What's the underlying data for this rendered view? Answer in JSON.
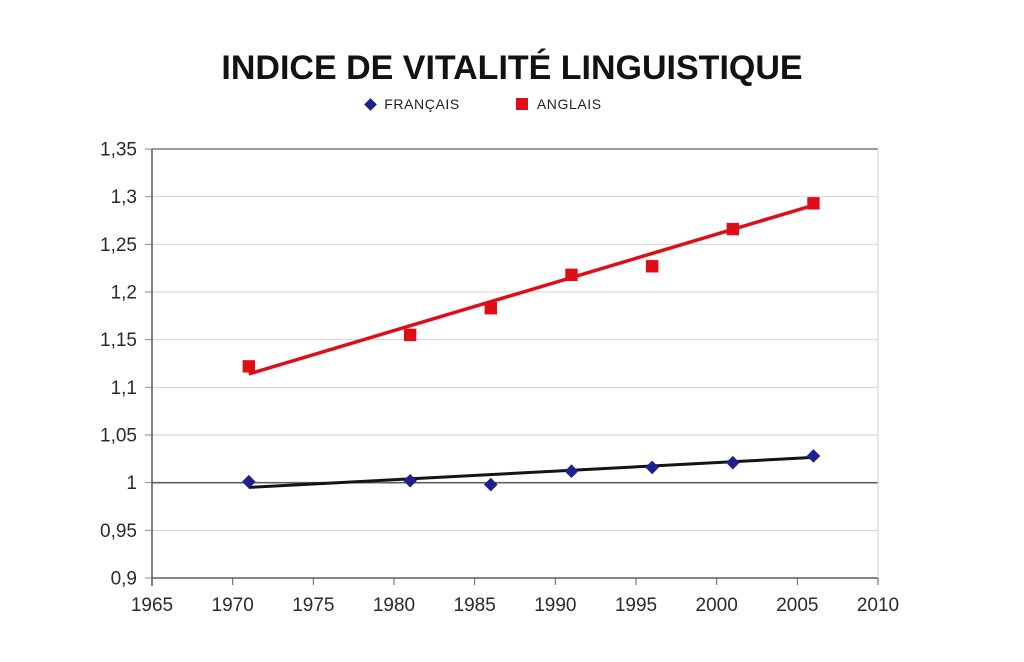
{
  "chart_data": {
    "type": "scatter",
    "title": "INDICE DE VITALITÉ LINGUISTIQUE",
    "x": [
      1971,
      1981,
      1986,
      1991,
      1996,
      2001,
      2006
    ],
    "series": [
      {
        "name": "FRANÇAIS",
        "color": "#1f1f8f",
        "marker": "diamond",
        "values": [
          1.001,
          1.002,
          0.998,
          1.012,
          1.016,
          1.021,
          1.028
        ],
        "trendline": {
          "color": "#141414",
          "x1": 1971,
          "y1": 0.995,
          "x2": 2006,
          "y2": 1.0265,
          "width": 3
        }
      },
      {
        "name": "ANGLAIS",
        "color": "#e00d17",
        "marker": "square",
        "values": [
          1.122,
          1.155,
          1.183,
          1.218,
          1.227,
          1.266,
          1.293
        ],
        "trendline": {
          "color": "#e00d17",
          "x1": 1971,
          "y1": 1.114,
          "x2": 2006,
          "y2": 1.291,
          "width": 3.5
        }
      }
    ],
    "xlim": [
      1965,
      2010
    ],
    "ylim": [
      0.9,
      1.35
    ],
    "x_ticks": [
      1965,
      1970,
      1975,
      1980,
      1985,
      1990,
      1995,
      2000,
      2005,
      2010
    ],
    "x_tick_labels": [
      "1965",
      "1970",
      "1975",
      "1980",
      "1985",
      "1990",
      "1995",
      "2000",
      "2005",
      "2010"
    ],
    "y_ticks": [
      0.9,
      0.95,
      1.0,
      1.05,
      1.1,
      1.15,
      1.2,
      1.25,
      1.3,
      1.35
    ],
    "y_tick_labels": [
      "0,9",
      "0,95",
      "1",
      "1,05",
      "1,1",
      "1,15",
      "1,2",
      "1,25",
      "1,3",
      "1,35"
    ],
    "grid": true,
    "legend_position": "top-center",
    "emphasized_gridline": 1.0,
    "colors": {
      "gridline": "#d2d2d2",
      "gridline_emphasized": "#5f5f5f",
      "plot_top_border": "#9a9ba1",
      "plot_right_border": "#d2d2d2",
      "axis_line": "#5f5f5f",
      "tick": "#8a8a8a",
      "background": "#ffffff",
      "title_color": "#121216"
    }
  }
}
